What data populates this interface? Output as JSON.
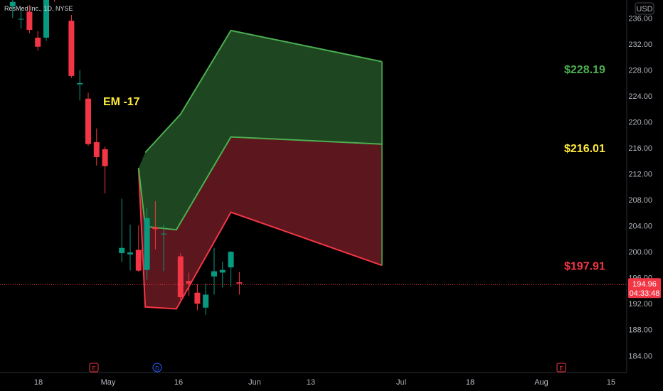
{
  "symbol_text": "ResMed Inc., 1D, NYSE",
  "currency": "USD",
  "chart_data": {
    "type": "candlestick",
    "title": "",
    "ylim": [
      181.4,
      238.8
    ],
    "y_ticks": [
      "236.00",
      "232.00",
      "228.00",
      "224.00",
      "220.00",
      "216.00",
      "212.00",
      "208.00",
      "204.00",
      "200.00",
      "196.00",
      "192.00",
      "188.00",
      "184.00"
    ],
    "x_ticks": [
      "18",
      "May",
      "16",
      "Jun",
      "13",
      "Jul",
      "18",
      "Aug",
      "15"
    ],
    "last_price": "194.96",
    "countdown": "04:33:48",
    "annotation": "EM -17",
    "levels": [
      {
        "label": "$228.19",
        "value": 228.19,
        "color": "#4caf50"
      },
      {
        "label": "$216.01",
        "value": 216.01,
        "color": "#ffeb3b"
      },
      {
        "label": "$197.91",
        "value": 197.91,
        "color": "#f23645"
      }
    ],
    "events": [
      {
        "letter": "E",
        "color": "#f23645"
      },
      {
        "letter": "D",
        "color": "#2962ff"
      },
      {
        "letter": "E",
        "color": "#f23645"
      }
    ],
    "green_band": {
      "upper": [
        [
          16.8,
          215.3
        ],
        [
          21.0,
          221.2
        ],
        [
          27.0,
          234.1
        ],
        [
          45.0,
          229.3
        ]
      ],
      "lower": [
        [
          16.0,
          212.9
        ],
        [
          16.8,
          203.9
        ],
        [
          20.5,
          203.4
        ],
        [
          27.0,
          217.7
        ],
        [
          45.0,
          216.6
        ]
      ]
    },
    "red_band": {
      "upper": [
        [
          16.0,
          212.9
        ],
        [
          16.8,
          203.9
        ],
        [
          20.5,
          203.4
        ],
        [
          27.0,
          217.7
        ],
        [
          45.0,
          216.6
        ]
      ],
      "lower": [
        [
          16.0,
          212.9
        ],
        [
          16.8,
          191.5
        ],
        [
          20.5,
          191.2
        ],
        [
          27.0,
          206.1
        ],
        [
          45.0,
          197.91
        ]
      ]
    },
    "candles": [
      {
        "x": 1,
        "o": 237.8,
        "h": 239.0,
        "l": 236.0,
        "c": 238.5
      },
      {
        "x": 2,
        "o": 235.8,
        "h": 237.2,
        "l": 234.4,
        "c": 235.9
      },
      {
        "x": 3,
        "o": 237.0,
        "h": 238.0,
        "l": 233.7,
        "c": 234.2
      },
      {
        "x": 4,
        "o": 233.0,
        "h": 234.0,
        "l": 231.0,
        "c": 231.6
      },
      {
        "x": 5,
        "o": 233.0,
        "h": 240.0,
        "l": 232.5,
        "c": 239.8
      },
      {
        "x": 6,
        "o": 239.5,
        "h": 240.0,
        "l": 238.5,
        "c": 239.0
      },
      {
        "x": 7,
        "o": 240.5,
        "h": 241.0,
        "l": 239.2,
        "c": 239.5
      },
      {
        "x": 8,
        "o": 235.6,
        "h": 236.5,
        "l": 226.8,
        "c": 227.1
      },
      {
        "x": 9,
        "o": 225.8,
        "h": 228.0,
        "l": 223.3,
        "c": 226.0
      },
      {
        "x": 10,
        "o": 223.6,
        "h": 224.5,
        "l": 216.3,
        "c": 216.6
      },
      {
        "x": 11,
        "o": 216.9,
        "h": 219.0,
        "l": 213.3,
        "c": 214.6
      },
      {
        "x": 12,
        "o": 215.8,
        "h": 216.2,
        "l": 209.0,
        "c": 213.2
      },
      {
        "x": 14,
        "o": 199.8,
        "h": 208.2,
        "l": 198.4,
        "c": 200.6
      },
      {
        "x": 15,
        "o": 199.6,
        "h": 204.2,
        "l": 197.1,
        "c": 199.9
      },
      {
        "x": 16,
        "o": 200.3,
        "h": 204.1,
        "l": 196.9,
        "c": 197.1
      },
      {
        "x": 17,
        "o": 197.2,
        "h": 206.8,
        "l": 195.7,
        "c": 205.2
      },
      {
        "x": 18,
        "o": 203.8,
        "h": 207.8,
        "l": 200.4,
        "c": 203.5
      },
      {
        "x": 19,
        "o": 202.7,
        "h": 204.2,
        "l": 197.0,
        "c": 202.8
      },
      {
        "x": 21,
        "o": 199.3,
        "h": 199.8,
        "l": 192.6,
        "c": 193.0
      },
      {
        "x": 22,
        "o": 195.5,
        "h": 196.8,
        "l": 193.2,
        "c": 195.1
      },
      {
        "x": 23,
        "o": 193.7,
        "h": 195.0,
        "l": 191.0,
        "c": 192.0
      },
      {
        "x": 24,
        "o": 191.4,
        "h": 195.1,
        "l": 190.3,
        "c": 193.4
      },
      {
        "x": 25,
        "o": 196.2,
        "h": 200.6,
        "l": 193.4,
        "c": 197.0
      },
      {
        "x": 26,
        "o": 196.8,
        "h": 198.5,
        "l": 194.5,
        "c": 197.2
      },
      {
        "x": 27,
        "o": 197.6,
        "h": 200.1,
        "l": 194.6,
        "c": 200.0
      },
      {
        "x": 28,
        "o": 195.3,
        "h": 196.9,
        "l": 193.4,
        "c": 195.1
      }
    ]
  }
}
